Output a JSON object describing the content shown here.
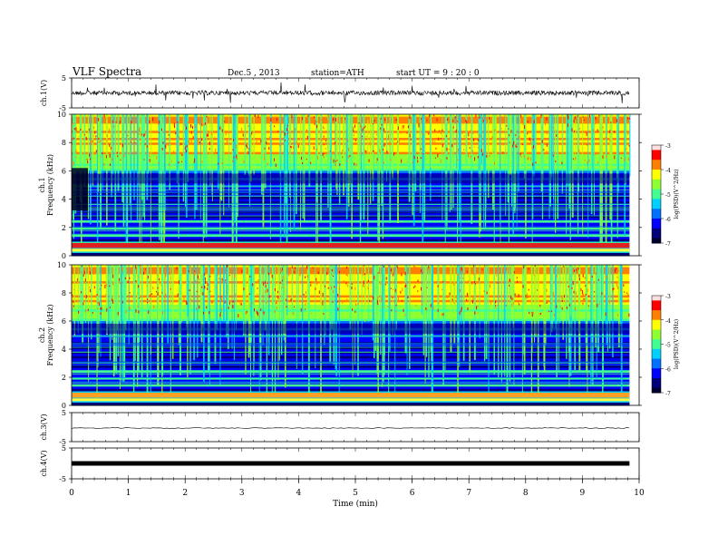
{
  "header": {
    "title": "VLF Spectra",
    "date": "Dec.5 , 2013",
    "station": "station=ATH",
    "start": "start UT = 9 : 20 : 0"
  },
  "chart_data": [
    {
      "type": "line",
      "ylabel": "ch.1(V)",
      "ylim": [
        -5,
        5
      ],
      "ytick_labels": [
        "5",
        "-5"
      ],
      "description_level_V": 0,
      "color": "#000000"
    },
    {
      "type": "heatmap",
      "ylabel": "ch.1 Frequency (kHz)",
      "ylim": [
        0,
        10
      ],
      "yticks": [
        0,
        2,
        4,
        6,
        8,
        10
      ],
      "colorbar": {
        "label": "log(PSD)(V^2/Hz)",
        "range": [
          -7,
          -3
        ],
        "ticks": [
          "-3",
          "-4",
          "-5",
          "-6",
          "-7"
        ]
      }
    },
    {
      "type": "heatmap",
      "ylabel": "ch.2 Frequency (kHz)",
      "ylim": [
        0,
        10
      ],
      "yticks": [
        0,
        2,
        4,
        6,
        8,
        10
      ],
      "colorbar": {
        "label": "log(PSD)(V^2/Hz)",
        "range": [
          -7,
          -3
        ],
        "ticks": [
          "-3",
          "-4",
          "-5",
          "-6",
          "-7"
        ]
      }
    },
    {
      "type": "line",
      "ylabel": "ch.3(V)",
      "ylim": [
        -5,
        5
      ],
      "ytick_labels": [
        "5",
        "-5"
      ],
      "color": "#000000"
    },
    {
      "type": "line",
      "ylabel": "ch.4(V)",
      "ylim": [
        -5,
        5
      ],
      "ytick_labels": [
        "5",
        "-5"
      ],
      "color": "#000000"
    }
  ],
  "xaxis": {
    "label": "Time (min)",
    "xlim": [
      0,
      10
    ],
    "ticks": [
      "0",
      "1",
      "2",
      "3",
      "4",
      "5",
      "6",
      "7",
      "8",
      "9",
      "10"
    ],
    "data_end": 9.83
  },
  "colormap": [
    "#000030",
    "#00007a",
    "#0000ff",
    "#0070ff",
    "#00d0ff",
    "#40ff90",
    "#90ff30",
    "#ffff00",
    "#ff8000",
    "#ff0000",
    "#ffe0e0"
  ]
}
